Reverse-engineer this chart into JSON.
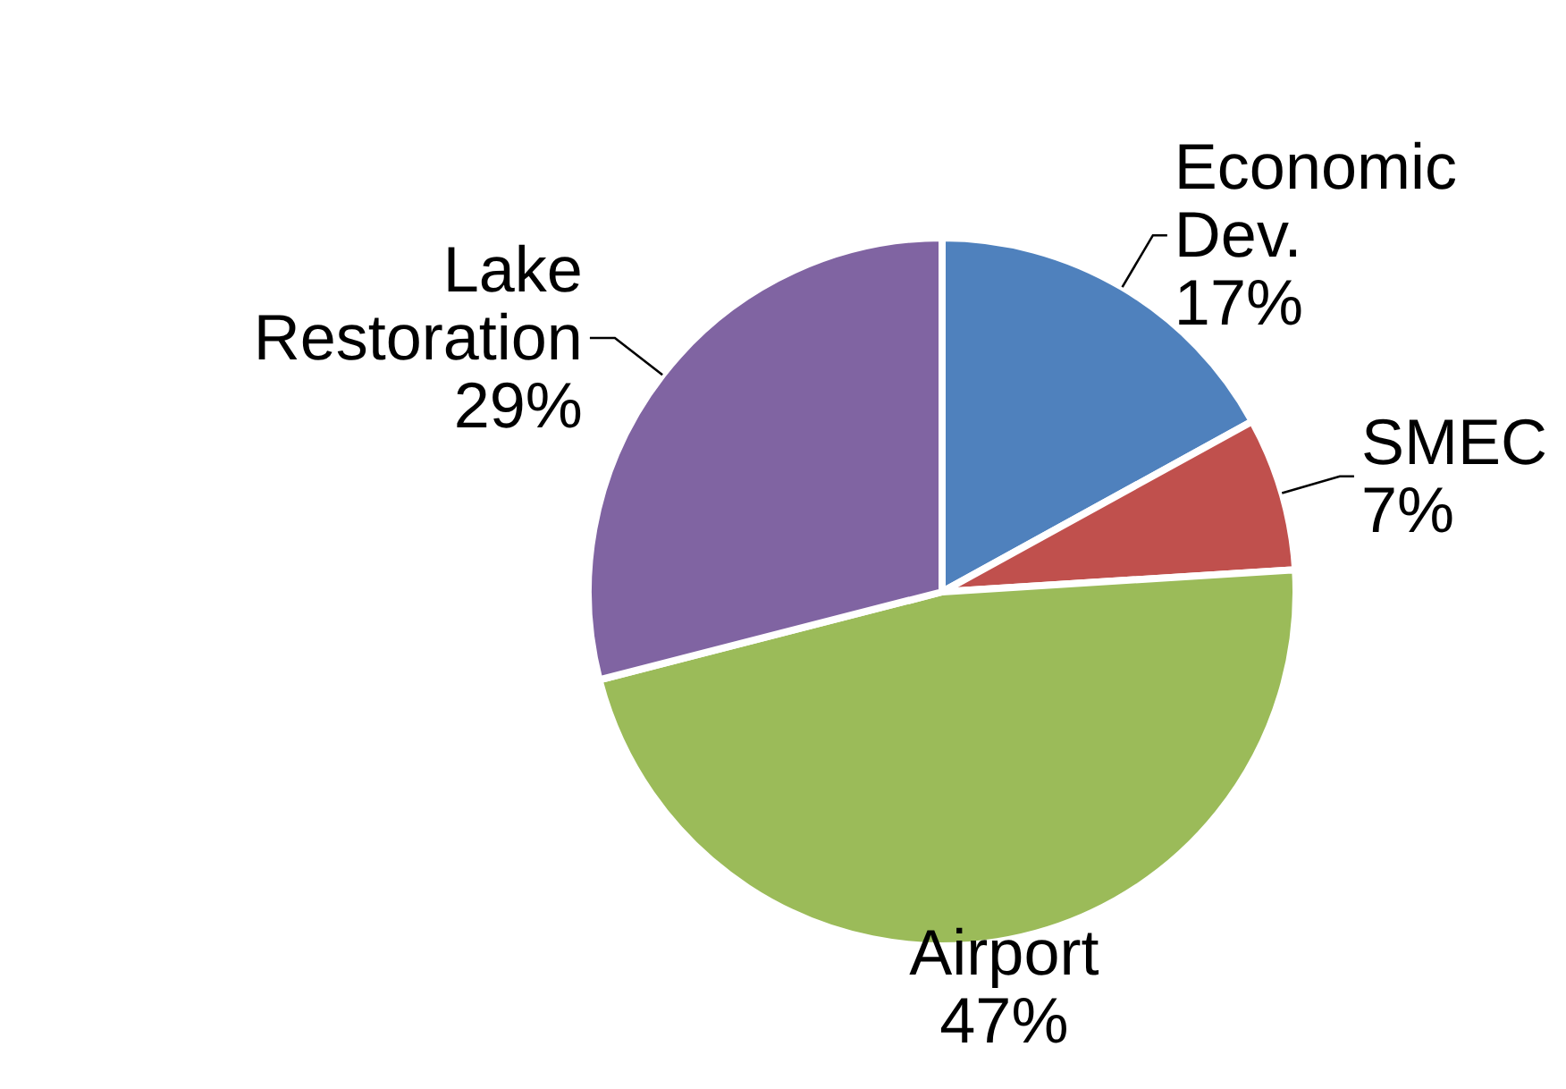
{
  "chart_data": {
    "type": "pie",
    "categories": [
      "Economic Dev.",
      "SMEC",
      "Airport",
      "Lake Restoration"
    ],
    "values": [
      17,
      7,
      47,
      29
    ],
    "colors": [
      "#4f81bd",
      "#c0504d",
      "#9bbb59",
      "#8064a2"
    ],
    "value_labels": [
      "17%",
      "7%",
      "47%",
      "29%"
    ]
  }
}
